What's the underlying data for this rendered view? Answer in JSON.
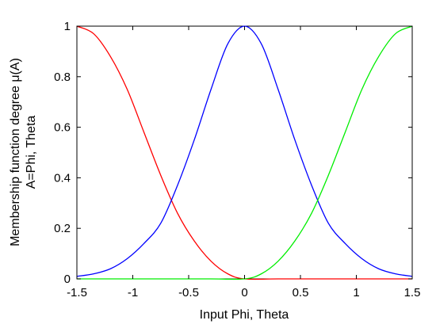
{
  "chart_data": {
    "type": "line",
    "xlabel": "Input Phi, Theta",
    "ylabel_lines": [
      "Membership function degree μ(A)",
      "A=Phi, Theta"
    ],
    "xlim": [
      -1.5,
      1.5
    ],
    "ylim": [
      0,
      1
    ],
    "xticks": [
      -1.5,
      -1,
      -0.5,
      0,
      0.5,
      1,
      1.5
    ],
    "xtick_labels": [
      "-1.5",
      "-1",
      "-0.5",
      "0",
      "0.5",
      "1",
      "1.5"
    ],
    "yticks": [
      0,
      0.2,
      0.4,
      0.6,
      0.8,
      1
    ],
    "ytick_labels": [
      "0",
      "0.2",
      "0.4",
      "0.6",
      "0.8",
      "1"
    ],
    "grid": false,
    "legend": "none",
    "series": [
      {
        "color": "#ff0000",
        "x": [
          -1.5,
          -1.35,
          -1.2,
          -1.05,
          -0.9,
          -0.75,
          -0.6,
          -0.45,
          -0.3,
          -0.15,
          0,
          0.3,
          0.6,
          0.9,
          1.2,
          1.5
        ],
        "y": [
          1.0,
          0.97,
          0.88,
          0.75,
          0.58,
          0.41,
          0.26,
          0.15,
          0.07,
          0.02,
          0.0,
          0.0,
          0.0,
          0.0,
          0.0,
          0.0
        ]
      },
      {
        "color": "#0000ff",
        "x": [
          -1.5,
          -1.35,
          -1.2,
          -1.05,
          -0.9,
          -0.75,
          -0.6,
          -0.45,
          -0.3,
          -0.15,
          0,
          0.15,
          0.3,
          0.45,
          0.6,
          0.75,
          0.9,
          1.05,
          1.2,
          1.35,
          1.5
        ],
        "y": [
          0.01,
          0.02,
          0.04,
          0.08,
          0.14,
          0.22,
          0.37,
          0.55,
          0.75,
          0.93,
          1.0,
          0.93,
          0.75,
          0.55,
          0.37,
          0.22,
          0.14,
          0.08,
          0.04,
          0.02,
          0.01
        ]
      },
      {
        "color": "#00ee00",
        "x": [
          -1.5,
          -1.2,
          -0.9,
          -0.6,
          -0.3,
          0,
          0.15,
          0.3,
          0.45,
          0.6,
          0.75,
          0.9,
          1.05,
          1.2,
          1.35,
          1.5
        ],
        "y": [
          0.0,
          0.0,
          0.0,
          0.0,
          0.0,
          0.0,
          0.02,
          0.07,
          0.15,
          0.26,
          0.41,
          0.58,
          0.75,
          0.88,
          0.97,
          1.0
        ]
      }
    ]
  }
}
